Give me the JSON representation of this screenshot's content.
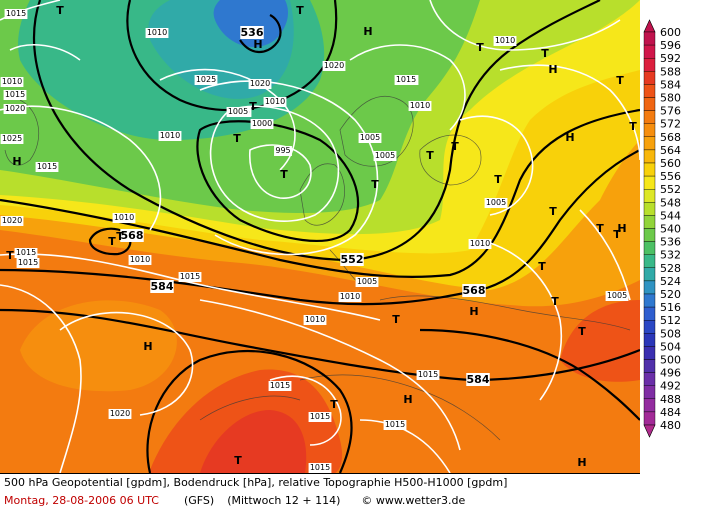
{
  "footer": {
    "line1": "500 hPa Geopotential [gpdm], Bodendruck [hPa], relative Topographie H500-H1000 [gpdm]",
    "date": "Montag, 28-08-2006  06 UTC",
    "model": "(GFS)",
    "forecast": "(Mittwoch 12 + 114)",
    "credit": "© www.wetter3.de"
  },
  "legend": {
    "levels": [
      "600",
      "596",
      "592",
      "588",
      "584",
      "580",
      "576",
      "572",
      "568",
      "564",
      "560",
      "556",
      "552",
      "548",
      "544",
      "540",
      "536",
      "532",
      "528",
      "524",
      "520",
      "516",
      "512",
      "508",
      "504",
      "500",
      "496",
      "492",
      "488",
      "484",
      "480"
    ],
    "colors": [
      "#c0134d",
      "#d0164a",
      "#db1f3e",
      "#e63a22",
      "#ee5317",
      "#f06512",
      "#f37b10",
      "#f68e0e",
      "#f7a10c",
      "#f8b70a",
      "#f8d10a",
      "#f6e71a",
      "#dde727",
      "#b8df2c",
      "#92d43a",
      "#6cc94a",
      "#4cc064",
      "#38b888",
      "#30aaa8",
      "#2f93c2",
      "#2f78cf",
      "#2e5ecf",
      "#2a47c4",
      "#2a36b8",
      "#3a2fb0",
      "#5030aa",
      "#6a2fa8",
      "#7f2ea4",
      "#932c9f",
      "#a22a97",
      "#b02a8c"
    ]
  },
  "map": {
    "isohypse_labels": [
      "536",
      "568",
      "552",
      "584",
      "568",
      "584"
    ],
    "pressure_labels": [
      "1015",
      "1010",
      "1025",
      "1020",
      "1015",
      "1010",
      "1015",
      "1020",
      "1025",
      "1010",
      "1020",
      "1005",
      "1005",
      "1000",
      "995",
      "1005",
      "1015",
      "1010",
      "1010",
      "1010",
      "1005",
      "1015",
      "1010",
      "1020",
      "1015",
      "1015",
      "1010",
      "1005",
      "1010",
      "1015",
      "1015",
      "1005",
      "1010",
      "1020",
      "1015",
      "1015",
      "1015",
      "1015",
      "1005",
      "1010"
    ],
    "high_markers": [
      "H",
      "H",
      "H",
      "H",
      "H",
      "H",
      "H",
      "H",
      "H",
      "H"
    ],
    "low_markers": [
      "T",
      "T",
      "T",
      "T",
      "T",
      "T",
      "T",
      "T",
      "T",
      "T",
      "T",
      "T",
      "T",
      "T",
      "T",
      "T",
      "T",
      "T",
      "T",
      "T",
      "T",
      "T",
      "T",
      "T",
      "T"
    ]
  }
}
